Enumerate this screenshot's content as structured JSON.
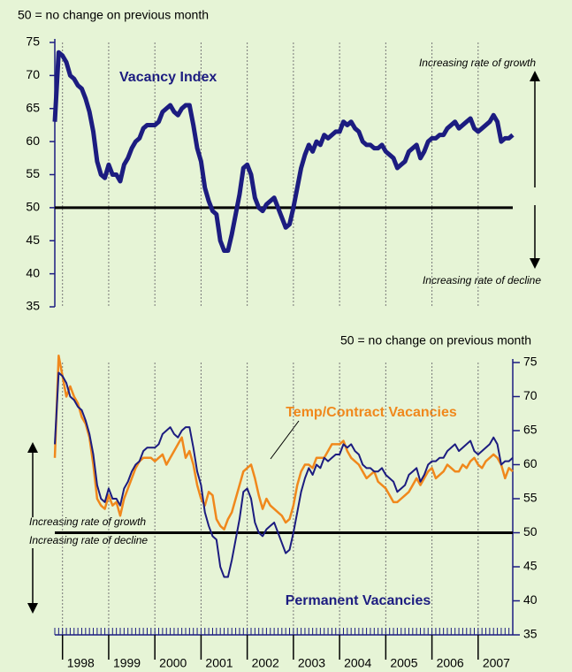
{
  "chart_data": [
    {
      "type": "line",
      "note": "50 =  no change on previous month",
      "annotations": [
        "Increasing rate of growth",
        "Increasing rate of decline"
      ],
      "ylim": [
        35,
        75
      ],
      "yticks": [
        35,
        40,
        45,
        50,
        55,
        60,
        65,
        70,
        75
      ],
      "reference_line": 50,
      "series": [
        {
          "name": "Vacancy Index",
          "color": "#1c1c80",
          "values": [
            63,
            73.5,
            73,
            72,
            70,
            69.5,
            68.5,
            68,
            66.5,
            64.5,
            61.5,
            57,
            55,
            54.5,
            56.5,
            55,
            55,
            54,
            56.5,
            57.5,
            59,
            60,
            60.5,
            62,
            62.5,
            62.5,
            62.5,
            63,
            64.5,
            65,
            65.5,
            64.5,
            64,
            65,
            65.5,
            65.5,
            62.5,
            59,
            57,
            53,
            51,
            49.5,
            49,
            45,
            43.5,
            43.5,
            46,
            49,
            52,
            56,
            56.5,
            55,
            51.5,
            50,
            49.5,
            50.5,
            51,
            51.5,
            50,
            48.5,
            47,
            47.5,
            50,
            53,
            56,
            58,
            59.5,
            58.5,
            60,
            59.5,
            61,
            60.5,
            61,
            61.5,
            61.5,
            63,
            62.5,
            63,
            62,
            61.5,
            60,
            59.5,
            59.5,
            59,
            59,
            59.5,
            58.5,
            58,
            57.5,
            56,
            56.5,
            57,
            58.5,
            59,
            59.5,
            57.5,
            58.5,
            60,
            60.5,
            60.5,
            61,
            61,
            62,
            62.5,
            63,
            62,
            62.5,
            63,
            63.5,
            62,
            61.5,
            62,
            62.5,
            63,
            64,
            63,
            60,
            60.5,
            60.5,
            61
          ]
        }
      ]
    },
    {
      "type": "line",
      "note": "50 = no change on previous month",
      "annotations": [
        "Increasing rate of growth",
        "Increasing rate of decline"
      ],
      "ylim": [
        35,
        75
      ],
      "yticks": [
        35,
        40,
        45,
        50,
        55,
        60,
        65,
        70,
        75
      ],
      "reference_line": 50,
      "categories": [
        null,
        null,
        "1998",
        null,
        null,
        null,
        null,
        null,
        null,
        null,
        null,
        null,
        null,
        null,
        "1999",
        null,
        null,
        null,
        null,
        null,
        null,
        null,
        null,
        null,
        null,
        null,
        "2000",
        null,
        null,
        null,
        null,
        null,
        null,
        null,
        null,
        null,
        null,
        null,
        "2001",
        null,
        null,
        null,
        null,
        null,
        null,
        null,
        null,
        null,
        null,
        null,
        "2002",
        null,
        null,
        null,
        null,
        null,
        null,
        null,
        null,
        null,
        null,
        null,
        "2003",
        null,
        null,
        null,
        null,
        null,
        null,
        null,
        null,
        null,
        null,
        null,
        "2004",
        null,
        null,
        null,
        null,
        null,
        null,
        null,
        null,
        null,
        null,
        null,
        "2005",
        null,
        null,
        null,
        null,
        null,
        null,
        null,
        null,
        null,
        null,
        null,
        "2006",
        null,
        null,
        null,
        null,
        null,
        null,
        null,
        null,
        null,
        null,
        null,
        "2007",
        null,
        null,
        null,
        null,
        null,
        null,
        null,
        null,
        null
      ],
      "series": [
        {
          "name": "Temp/Contract Vacancies",
          "color": "#f0881c",
          "values": [
            61,
            76,
            73,
            70,
            71.5,
            70,
            69,
            67,
            66,
            64,
            60,
            55,
            54,
            53.5,
            55.5,
            54,
            54.5,
            52.5,
            55,
            56.5,
            58,
            59.5,
            60.5,
            61,
            61,
            61,
            60.5,
            61,
            61.5,
            60,
            61,
            62,
            63,
            64,
            61,
            62,
            60,
            57,
            55,
            54,
            56,
            55.5,
            52,
            51,
            50.5,
            52,
            53,
            55,
            57,
            59,
            59.5,
            60,
            58,
            55.5,
            53.5,
            55,
            54,
            53.5,
            53,
            52.5,
            51.5,
            52,
            54,
            57,
            59,
            60,
            60,
            59.5,
            61,
            61,
            61,
            62,
            63,
            63,
            63,
            63.5,
            62,
            61,
            60.5,
            60,
            59,
            58,
            58.5,
            59,
            57.5,
            57,
            56.5,
            55.5,
            54.5,
            54.5,
            55,
            55.5,
            56,
            57,
            58,
            57,
            58,
            59,
            59.5,
            58,
            58.5,
            59,
            60,
            59.5,
            59,
            59,
            60,
            59.5,
            60.5,
            61,
            60,
            59.5,
            60.5,
            61,
            61.5,
            61,
            60,
            58,
            59.5,
            59
          ]
        },
        {
          "name": "Permanent Vacancies",
          "color": "#1c1c80",
          "values": [
            63,
            73.5,
            73,
            72,
            70,
            69.5,
            68.5,
            68,
            66.5,
            64.5,
            61.5,
            57,
            55,
            54.5,
            56.5,
            55,
            55,
            54,
            56.5,
            57.5,
            59,
            60,
            60.5,
            62,
            62.5,
            62.5,
            62.5,
            63,
            64.5,
            65,
            65.5,
            64.5,
            64,
            65,
            65.5,
            65.5,
            62.5,
            59,
            57,
            53,
            51,
            49.5,
            49,
            45,
            43.5,
            43.5,
            46,
            49,
            52,
            56,
            56.5,
            55,
            51.5,
            50,
            49.5,
            50.5,
            51,
            51.5,
            50,
            48.5,
            47,
            47.5,
            50,
            53,
            56,
            58,
            59.5,
            58.5,
            60,
            59.5,
            61,
            60.5,
            61,
            61.5,
            61.5,
            63,
            62.5,
            63,
            62,
            61.5,
            60,
            59.5,
            59.5,
            59,
            59,
            59.5,
            58.5,
            58,
            57.5,
            56,
            56.5,
            57,
            58.5,
            59,
            59.5,
            57.5,
            58.5,
            60,
            60.5,
            60.5,
            61,
            61,
            62,
            62.5,
            63,
            62,
            62.5,
            63,
            63.5,
            62,
            61.5,
            62,
            62.5,
            63,
            64,
            63,
            60,
            60.5,
            60.5,
            61
          ]
        }
      ]
    }
  ]
}
